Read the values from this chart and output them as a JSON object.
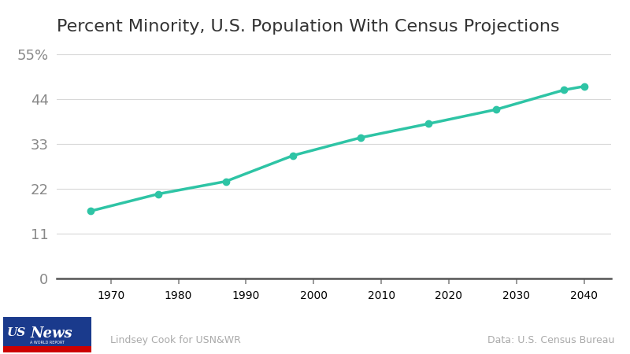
{
  "title": "Percent Minority, U.S. Population With Census Projections",
  "x_values": [
    1967,
    1977,
    1987,
    1997,
    2007,
    2017,
    2027,
    2037,
    2040
  ],
  "y_values": [
    16.5,
    20.7,
    23.8,
    30.2,
    34.6,
    38.0,
    41.5,
    46.3,
    47.2
  ],
  "line_color": "#2ec4a5",
  "marker_color": "#2ec4a5",
  "background_color": "#ffffff",
  "ytick_labels": [
    "0",
    "11",
    "22",
    "33",
    "44",
    "55%"
  ],
  "ytick_values": [
    0,
    11,
    22,
    33,
    44,
    55
  ],
  "xtick_values": [
    1970,
    1980,
    1990,
    2000,
    2010,
    2020,
    2030,
    2040
  ],
  "ylim": [
    -3,
    58
  ],
  "xlim": [
    1962,
    2044
  ],
  "title_fontsize": 16,
  "tick_fontsize": 13,
  "line_width": 2.5,
  "marker_size": 6,
  "grid_color": "#d8d8d8",
  "axis_color": "#555555",
  "footer_left": "Lindsey Cook for USN&WR",
  "footer_right": "Data: U.S. Census Bureau",
  "footer_fontsize": 9,
  "footer_color": "#aaaaaa",
  "title_color": "#333333",
  "tick_color": "#888888"
}
